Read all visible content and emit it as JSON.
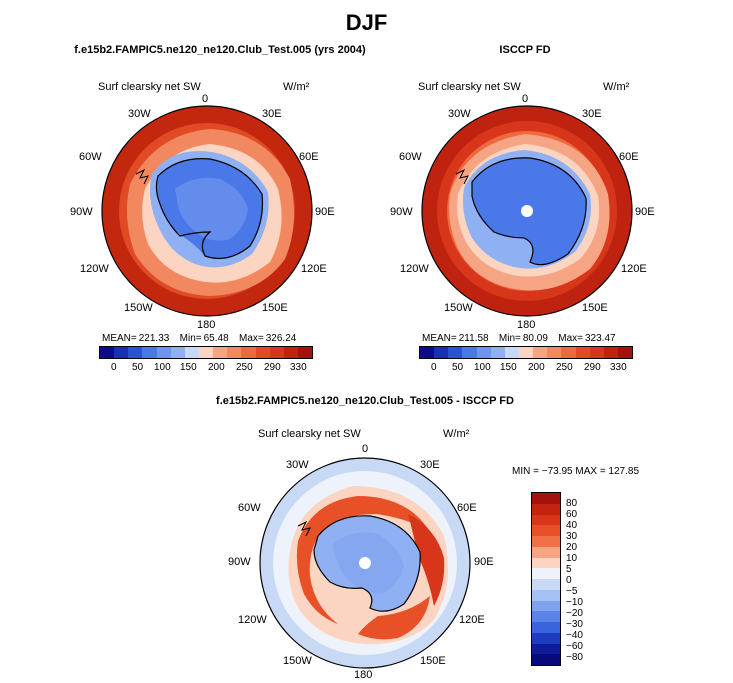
{
  "figure": {
    "title": "DJF"
  },
  "colors": {
    "deepBlue": "#0a0a8a",
    "blue": "#2a52d6",
    "midBlue": "#4a78e8",
    "lightBlue": "#8fb0f2",
    "paleBlue": "#c8d9f5",
    "pale": "#eef3fb",
    "paleRed": "#fcd5c2",
    "lightRed": "#f6a584",
    "orange": "#ee6a3e",
    "red": "#d8361a",
    "darkRed": "#a3120c",
    "coast": "#000000"
  },
  "chart_data": [
    {
      "type": "heatmap",
      "projection": "south-polar-stereographic",
      "title": "f.e15b2.FAMPIC5.ne120_ne120.Club_Test.005 (yrs 2004)",
      "variable": "Surf clearsky net SW",
      "units": "W/m²",
      "longitude_labels": [
        "0",
        "30E",
        "60E",
        "90E",
        "120E",
        "150E",
        "180",
        "150W",
        "120W",
        "90W",
        "60W",
        "30W"
      ],
      "stats": {
        "mean_label": "MEAN=",
        "mean": "221.33",
        "min_label": "Min=",
        "min": "65.48",
        "max_label": "Max=",
        "max": "326.24"
      },
      "colorbar": {
        "orientation": "horizontal",
        "ticks": [
          "0",
          "50",
          "100",
          "150",
          "200",
          "250",
          "290",
          "330"
        ],
        "colors": [
          "#0a0a8a",
          "#1a2fb8",
          "#2a52d6",
          "#4a78e8",
          "#6d94ee",
          "#8fb0f2",
          "#c8d9f5",
          "#fcd5c2",
          "#f6a584",
          "#f28860",
          "#ee6a3e",
          "#e04a24",
          "#d8361a",
          "#bf2310",
          "#a3120c"
        ]
      }
    },
    {
      "type": "heatmap",
      "projection": "south-polar-stereographic",
      "title": "ISCCP FD",
      "variable": "Surf clearsky net SW",
      "units": "W/m²",
      "longitude_labels": [
        "0",
        "30E",
        "60E",
        "90E",
        "120E",
        "150E",
        "180",
        "150W",
        "120W",
        "90W",
        "60W",
        "30W"
      ],
      "stats": {
        "mean_label": "MEAN=",
        "mean": "211.58",
        "min_label": "Min=",
        "min": "80.09",
        "max_label": "Max=",
        "max": "323.47"
      },
      "colorbar": {
        "orientation": "horizontal",
        "ticks": [
          "0",
          "50",
          "100",
          "150",
          "200",
          "250",
          "290",
          "330"
        ],
        "colors": [
          "#0a0a8a",
          "#1a2fb8",
          "#2a52d6",
          "#4a78e8",
          "#6d94ee",
          "#8fb0f2",
          "#c8d9f5",
          "#fcd5c2",
          "#f6a584",
          "#f28860",
          "#ee6a3e",
          "#e04a24",
          "#d8361a",
          "#bf2310",
          "#a3120c"
        ]
      }
    },
    {
      "type": "heatmap",
      "projection": "south-polar-stereographic",
      "title": "f.e15b2.FAMPIC5.ne120_ne120.Club_Test.005 - ISCCP FD",
      "variable": "Surf clearsky net SW",
      "units": "W/m²",
      "longitude_labels": [
        "0",
        "30E",
        "60E",
        "90E",
        "120E",
        "150E",
        "180",
        "150W",
        "120W",
        "90W",
        "60W",
        "30W"
      ],
      "stats": {
        "text": "MIN = −73.95  MAX = 127.85"
      },
      "colorbar": {
        "orientation": "vertical",
        "ticks": [
          "80",
          "60",
          "40",
          "30",
          "20",
          "10",
          "5",
          "0",
          "−5",
          "−10",
          "−20",
          "−30",
          "−40",
          "−60",
          "−80"
        ],
        "colors": [
          "#a3120c",
          "#c2240f",
          "#d8361a",
          "#e85028",
          "#f07048",
          "#f6a584",
          "#fcd5c2",
          "#eef3fb",
          "#c8d9f5",
          "#a4c0f4",
          "#7fa2ee",
          "#5a84e8",
          "#3a64dc",
          "#1e3cc0",
          "#0e1c9a",
          "#060a7a"
        ]
      }
    }
  ]
}
